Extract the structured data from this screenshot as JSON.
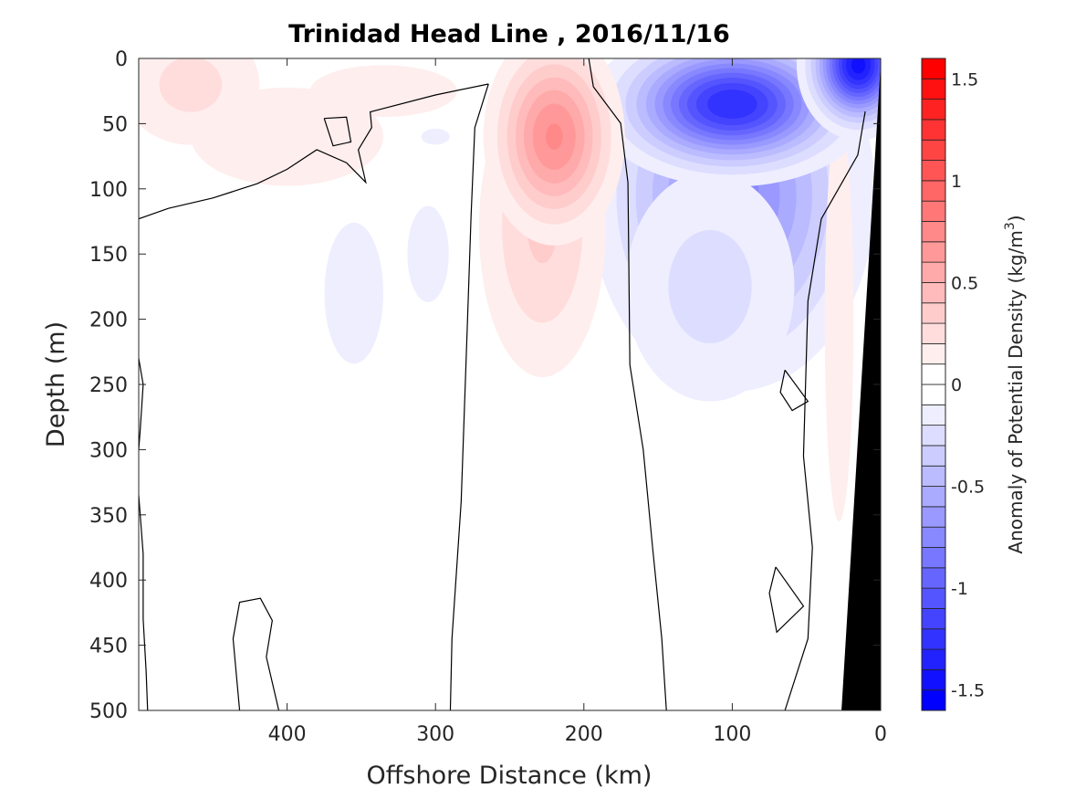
{
  "chart_data": {
    "type": "contourf",
    "title": "Trinidad Head Line , 2016/11/16",
    "xlabel": "Offshore Distance (km)",
    "ylabel": "Depth (m)",
    "xlim": [
      0,
      500
    ],
    "x_reversed": true,
    "ylim": [
      0,
      500
    ],
    "y_reversed": true,
    "xticks": [
      400,
      300,
      200,
      100,
      0
    ],
    "yticks": [
      0,
      50,
      100,
      150,
      200,
      250,
      300,
      350,
      400,
      450,
      500
    ],
    "colorbar": {
      "label": "Anomaly of Potential Density (kg/m",
      "label_sup": "3",
      "label_end": ")",
      "range": [
        -1.6,
        1.6
      ],
      "level_step": 0.1,
      "ticks": [
        1.5,
        1,
        0.5,
        0,
        -0.5,
        -1,
        -1.5
      ],
      "tick_labels": [
        "1.5",
        "1",
        "0.5",
        "0",
        "-0.5",
        "-1",
        "-1.5"
      ],
      "positive_color": "#ff0000",
      "negative_color": "#0000ff"
    },
    "anomaly_features": [
      {
        "x_km": 220,
        "depth_m": 60,
        "amplitude": 0.72,
        "sx_km": 24,
        "sz_m": 42
      },
      {
        "x_km": 228,
        "depth_m": 130,
        "amplitude": 0.32,
        "sx_km": 28,
        "sz_m": 75
      },
      {
        "x_km": 100,
        "depth_m": 35,
        "amplitude": -1.3,
        "sx_km": 42,
        "sz_m": 28
      },
      {
        "x_km": 100,
        "depth_m": 105,
        "amplitude": -0.75,
        "sx_km": 48,
        "sz_m": 75
      },
      {
        "x_km": 15,
        "depth_m": 5,
        "amplitude": -1.45,
        "sx_km": 18,
        "sz_m": 25
      },
      {
        "x_km": 115,
        "depth_m": 175,
        "amplitude": -0.25,
        "sx_km": 42,
        "sz_m": 65
      },
      {
        "x_km": 465,
        "depth_m": 20,
        "amplitude": 0.24,
        "sx_km": 35,
        "sz_m": 35
      },
      {
        "x_km": 400,
        "depth_m": 60,
        "amplitude": 0.2,
        "sx_km": 55,
        "sz_m": 32
      },
      {
        "x_km": 335,
        "depth_m": 25,
        "amplitude": 0.15,
        "sx_km": 55,
        "sz_m": 22
      },
      {
        "x_km": 355,
        "depth_m": 180,
        "amplitude": -0.15,
        "sx_km": 22,
        "sz_m": 60
      },
      {
        "x_km": 305,
        "depth_m": 150,
        "amplitude": -0.14,
        "sx_km": 17,
        "sz_m": 45
      },
      {
        "x_km": 300,
        "depth_m": 60,
        "amplitude": -0.11,
        "sx_km": 22,
        "sz_m": 14
      },
      {
        "x_km": 28,
        "depth_m": 200,
        "amplitude": 0.16,
        "sx_km": 10,
        "sz_m": 160
      }
    ],
    "zero_contours": [
      [
        [
          196.7,
          0
        ],
        [
          193.6,
          21.7
        ],
        [
          175.2,
          49.7
        ],
        [
          170.3,
          95.2
        ],
        [
          169,
          235
        ],
        [
          160,
          300
        ],
        [
          153.7,
          375
        ],
        [
          147.5,
          445
        ],
        [
          144.4,
          500
        ]
      ],
      [
        [
          264.3,
          19.6
        ],
        [
          273.5,
          53
        ],
        [
          276,
          120
        ],
        [
          278.4,
          200
        ],
        [
          282.7,
          340
        ],
        [
          288.9,
          445
        ],
        [
          290,
          500
        ]
      ],
      [
        [
          264.3,
          19.6
        ],
        [
          300,
          28
        ],
        [
          344,
          41
        ],
        [
          343,
          53
        ],
        [
          352,
          70
        ],
        [
          347,
          95
        ],
        [
          360,
          80
        ],
        [
          380,
          70
        ],
        [
          400,
          85
        ],
        [
          420,
          96
        ],
        [
          450,
          107
        ],
        [
          480,
          115
        ],
        [
          500,
          123
        ]
      ],
      [
        [
          375,
          46
        ],
        [
          360,
          45
        ],
        [
          357,
          64
        ],
        [
          369,
          67
        ],
        [
          375,
          46
        ]
      ],
      [
        [
          10.4,
          40.6
        ],
        [
          15.4,
          74
        ],
        [
          40,
          123
        ],
        [
          49,
          186
        ],
        [
          52,
          305
        ],
        [
          46,
          375
        ],
        [
          49,
          445
        ],
        [
          64.5,
          500
        ]
      ],
      [
        [
          64.5,
          239
        ],
        [
          49,
          263
        ],
        [
          59.6,
          270
        ],
        [
          67.6,
          256
        ],
        [
          64.5,
          239
        ]
      ],
      [
        [
          70.7,
          390
        ],
        [
          52,
          420
        ],
        [
          70,
          440
        ],
        [
          75,
          410
        ],
        [
          70.7,
          390
        ]
      ],
      [
        [
          432,
          500
        ],
        [
          436.4,
          445
        ],
        [
          432,
          417
        ],
        [
          418,
          414
        ],
        [
          410,
          431
        ],
        [
          414,
          459
        ],
        [
          405.6,
          500
        ]
      ],
      [
        [
          500,
          230
        ],
        [
          497,
          250
        ],
        [
          499,
          285
        ],
        [
          500,
          300
        ]
      ],
      [
        [
          500,
          335
        ],
        [
          497,
          380
        ],
        [
          497,
          430
        ],
        [
          495,
          470
        ],
        [
          494,
          500
        ]
      ]
    ],
    "land": [
      [
        0,
        0
      ],
      [
        0,
        500
      ],
      [
        26.4,
        500
      ],
      [
        0,
        4
      ]
    ]
  }
}
